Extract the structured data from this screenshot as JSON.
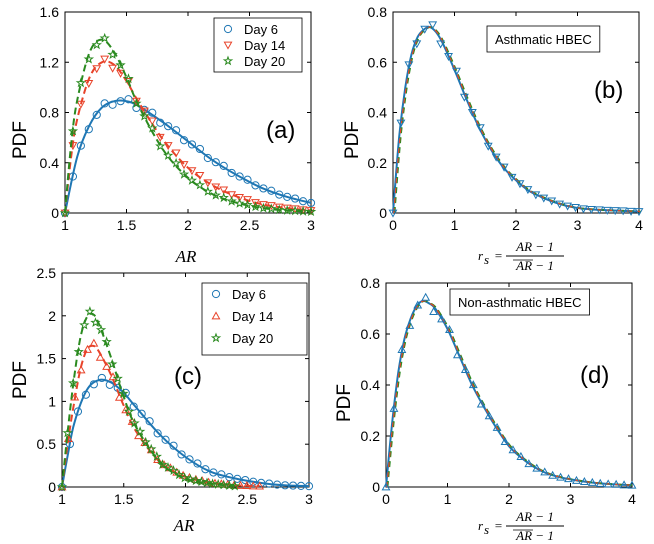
{
  "colors": {
    "day6": "#1f77b4",
    "day14": "#e8432a",
    "day20": "#2a8a1f",
    "fit20": "#2a8a1f"
  },
  "chart_data": [
    {
      "id": "a",
      "type": "line",
      "panel_label": "(a)",
      "ylabel": "PDF",
      "xlabel": "AR",
      "xlim": [
        1,
        3
      ],
      "ylim": [
        0,
        1.6
      ],
      "xticks": [
        "1",
        "1.5",
        "2",
        "2.5",
        "3"
      ],
      "yticks": [
        "0",
        "0.4",
        "0.8",
        "1.2",
        "1.6"
      ],
      "legend": {
        "position": "top-right",
        "entries": [
          "Day 6",
          "Day 14",
          "Day 20"
        ]
      },
      "series": [
        {
          "name": "Day 6",
          "marker": "circle",
          "color": "#1f77b4",
          "fit_style": "solid",
          "x": [
            1.0,
            1.1,
            1.2,
            1.3,
            1.4,
            1.5,
            1.6,
            1.8,
            2.0,
            2.2,
            2.4,
            2.6,
            2.8,
            3.0
          ],
          "y": [
            0.0,
            0.45,
            0.7,
            0.84,
            0.89,
            0.89,
            0.85,
            0.72,
            0.57,
            0.42,
            0.3,
            0.2,
            0.13,
            0.08
          ]
        },
        {
          "name": "Day 14",
          "marker": "triangle-down",
          "color": "#e8432a",
          "fit_style": "dashed",
          "x": [
            1.0,
            1.05,
            1.1,
            1.2,
            1.3,
            1.4,
            1.5,
            1.6,
            1.8,
            2.0,
            2.2,
            2.4,
            2.6,
            2.8,
            3.0
          ],
          "y": [
            0.0,
            0.45,
            0.75,
            1.08,
            1.2,
            1.18,
            1.05,
            0.88,
            0.58,
            0.36,
            0.22,
            0.13,
            0.07,
            0.04,
            0.02
          ]
        },
        {
          "name": "Day 20",
          "marker": "star",
          "color": "#2a8a1f",
          "fit_style": "dashed",
          "x": [
            1.0,
            1.05,
            1.1,
            1.2,
            1.3,
            1.4,
            1.5,
            1.6,
            1.8,
            2.0,
            2.2,
            2.4,
            2.6,
            2.8,
            3.0
          ],
          "y": [
            0.0,
            0.55,
            0.9,
            1.28,
            1.38,
            1.28,
            1.08,
            0.85,
            0.5,
            0.28,
            0.15,
            0.08,
            0.04,
            0.02,
            0.01
          ]
        }
      ]
    },
    {
      "id": "b",
      "type": "line",
      "panel_label": "(b)",
      "ylabel": "PDF",
      "xlabel_formula": true,
      "xlim": [
        0,
        4
      ],
      "ylim": [
        0,
        0.8
      ],
      "xticks": [
        "0",
        "1",
        "2",
        "3",
        "4"
      ],
      "yticks": [
        "0",
        "0.2",
        "0.4",
        "0.6",
        "0.8"
      ],
      "boxed_text": "Asthmatic HBEC",
      "series": [
        {
          "name": "Day 6",
          "marker": "triangle-down",
          "color": "#1f77b4",
          "fit_style": "solid",
          "x": [
            0.0,
            0.1,
            0.2,
            0.3,
            0.4,
            0.5,
            0.6,
            0.7,
            0.8,
            1.0,
            1.2,
            1.4,
            1.6,
            1.8,
            2.0,
            2.2,
            2.4,
            2.6,
            2.8,
            3.0,
            3.2,
            3.4,
            3.6,
            3.8,
            4.0
          ],
          "y": [
            0.0,
            0.3,
            0.5,
            0.63,
            0.7,
            0.73,
            0.74,
            0.72,
            0.68,
            0.57,
            0.45,
            0.34,
            0.25,
            0.18,
            0.13,
            0.09,
            0.065,
            0.045,
            0.03,
            0.02,
            0.015,
            0.012,
            0.01,
            0.008,
            0.006
          ]
        }
      ]
    },
    {
      "id": "c",
      "type": "line",
      "panel_label": "(c)",
      "ylabel": "PDF",
      "xlabel": "AR",
      "xlim": [
        1,
        3
      ],
      "ylim": [
        0,
        2.5
      ],
      "xticks": [
        "1",
        "1.5",
        "2",
        "2.5",
        "3"
      ],
      "yticks": [
        "0",
        "0.5",
        "1",
        "1.5",
        "2",
        "2.5"
      ],
      "legend": {
        "position": "top-right",
        "entries": [
          "Day 6",
          "Day 14",
          "Day 20"
        ]
      },
      "series": [
        {
          "name": "Day 6",
          "marker": "circle",
          "color": "#1f77b4",
          "fit_style": "solid",
          "x": [
            1.0,
            1.05,
            1.1,
            1.2,
            1.3,
            1.4,
            1.5,
            1.6,
            1.8,
            2.0,
            2.2,
            2.4,
            2.6,
            2.8,
            3.0
          ],
          "y": [
            0.0,
            0.4,
            0.75,
            1.13,
            1.25,
            1.22,
            1.1,
            0.93,
            0.6,
            0.35,
            0.18,
            0.1,
            0.05,
            0.02,
            0.01
          ]
        },
        {
          "name": "Day 14",
          "marker": "triangle-up",
          "color": "#e8432a",
          "fit_style": "dashed",
          "x": [
            1.0,
            1.05,
            1.1,
            1.15,
            1.2,
            1.25,
            1.3,
            1.4,
            1.5,
            1.6,
            1.8,
            2.0,
            2.2,
            2.4,
            2.6
          ],
          "y": [
            0.0,
            0.55,
            1.0,
            1.38,
            1.6,
            1.65,
            1.58,
            1.3,
            0.95,
            0.65,
            0.28,
            0.12,
            0.05,
            0.02,
            0.01
          ]
        },
        {
          "name": "Day 20",
          "marker": "star",
          "color": "#2a8a1f",
          "fit_style": "dashed",
          "x": [
            1.0,
            1.05,
            1.1,
            1.15,
            1.2,
            1.25,
            1.3,
            1.4,
            1.5,
            1.6,
            1.8,
            2.0,
            2.2,
            2.4
          ],
          "y": [
            0.0,
            0.7,
            1.3,
            1.75,
            1.98,
            2.02,
            1.9,
            1.5,
            1.05,
            0.7,
            0.28,
            0.1,
            0.04,
            0.01
          ]
        }
      ]
    },
    {
      "id": "d",
      "type": "line",
      "panel_label": "(d)",
      "ylabel": "PDF",
      "xlabel_formula": true,
      "xlim": [
        0,
        4
      ],
      "ylim": [
        0,
        0.8
      ],
      "xticks": [
        "0",
        "1",
        "2",
        "3",
        "4"
      ],
      "yticks": [
        "0",
        "0.2",
        "0.4",
        "0.6",
        "0.8"
      ],
      "boxed_text": "Non-asthmatic HBEC",
      "series": [
        {
          "name": "Day 6",
          "marker": "triangle-up",
          "color": "#1f77b4",
          "fit_style": "solid",
          "x": [
            0.0,
            0.1,
            0.2,
            0.3,
            0.4,
            0.5,
            0.6,
            0.7,
            0.8,
            1.0,
            1.2,
            1.4,
            1.6,
            1.8,
            2.0,
            2.2,
            2.4,
            2.6,
            2.8,
            3.0,
            3.2,
            3.4,
            3.6,
            3.8,
            4.0
          ],
          "y": [
            0.0,
            0.25,
            0.45,
            0.58,
            0.66,
            0.71,
            0.73,
            0.72,
            0.7,
            0.62,
            0.51,
            0.4,
            0.31,
            0.23,
            0.16,
            0.115,
            0.08,
            0.055,
            0.04,
            0.03,
            0.022,
            0.016,
            0.012,
            0.009,
            0.007
          ]
        }
      ]
    }
  ],
  "formula": {
    "lhs": "r",
    "lhs_sub": "s",
    "eq": "=",
    "num": "AR − 1",
    "den": "AR − 1"
  }
}
